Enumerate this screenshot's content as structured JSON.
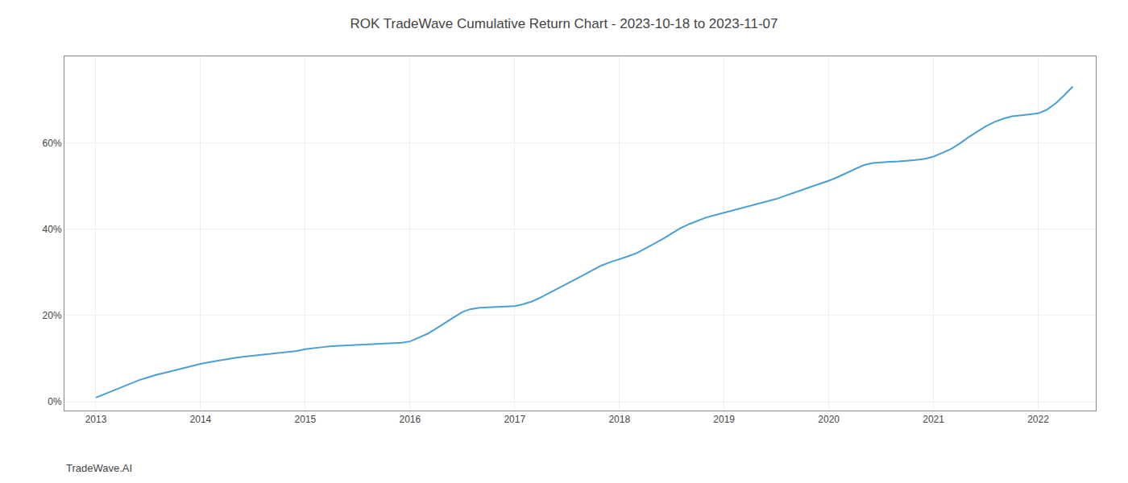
{
  "chart_data": {
    "type": "line",
    "title": "ROK TradeWave Cumulative Return Chart - 2023-10-18 to 2023-11-07",
    "annotations": [
      "TradeWave.AI"
    ],
    "color": "#4a9fd4",
    "grid": true,
    "xlim": [
      2012.7,
      2022.55
    ],
    "ylim": [
      -0.02,
      0.8
    ],
    "xticks": [
      2013,
      2014,
      2015,
      2016,
      2017,
      2018,
      2019,
      2020,
      2021,
      2022
    ],
    "yticks": [
      {
        "value": 0.0,
        "label": "0%"
      },
      {
        "value": 0.2,
        "label": "20%"
      },
      {
        "value": 0.4,
        "label": "40%"
      },
      {
        "value": 0.6,
        "label": "60%"
      }
    ],
    "x": [
      2013.0,
      2013.08,
      2013.17,
      2013.25,
      2013.33,
      2013.42,
      2013.5,
      2013.58,
      2013.67,
      2013.75,
      2013.83,
      2013.92,
      2014.0,
      2014.08,
      2014.17,
      2014.25,
      2014.33,
      2014.42,
      2014.5,
      2014.58,
      2014.67,
      2014.75,
      2014.83,
      2014.92,
      2015.0,
      2015.08,
      2015.17,
      2015.25,
      2015.33,
      2015.42,
      2015.5,
      2015.58,
      2015.67,
      2015.75,
      2015.83,
      2015.92,
      2016.0,
      2016.08,
      2016.17,
      2016.25,
      2016.33,
      2016.42,
      2016.5,
      2016.58,
      2016.67,
      2016.75,
      2016.83,
      2016.92,
      2017.0,
      2017.08,
      2017.17,
      2017.25,
      2017.33,
      2017.42,
      2017.5,
      2017.58,
      2017.67,
      2017.75,
      2017.83,
      2017.92,
      2018.0,
      2018.08,
      2018.17,
      2018.25,
      2018.33,
      2018.42,
      2018.5,
      2018.58,
      2018.67,
      2018.75,
      2018.83,
      2018.92,
      2019.0,
      2019.08,
      2019.17,
      2019.25,
      2019.33,
      2019.42,
      2019.5,
      2019.58,
      2019.67,
      2019.75,
      2019.83,
      2019.92,
      2020.0,
      2020.08,
      2020.17,
      2020.25,
      2020.33,
      2020.42,
      2020.5,
      2020.58,
      2020.67,
      2020.75,
      2020.83,
      2020.92,
      2021.0,
      2021.08,
      2021.17,
      2021.25,
      2021.33,
      2021.42,
      2021.5,
      2021.58,
      2021.67,
      2021.75,
      2021.83,
      2021.92,
      2022.0,
      2022.08,
      2022.17,
      2022.25,
      2022.33
    ],
    "values": [
      0.01,
      0.018,
      0.027,
      0.035,
      0.043,
      0.051,
      0.057,
      0.063,
      0.068,
      0.073,
      0.078,
      0.083,
      0.088,
      0.092,
      0.096,
      0.099,
      0.102,
      0.105,
      0.107,
      0.109,
      0.111,
      0.113,
      0.115,
      0.118,
      0.122,
      0.125,
      0.127,
      0.129,
      0.13,
      0.131,
      0.132,
      0.132,
      0.133,
      0.134,
      0.135,
      0.137,
      0.14,
      0.148,
      0.158,
      0.17,
      0.183,
      0.196,
      0.208,
      0.215,
      0.218,
      0.219,
      0.22,
      0.221,
      0.222,
      0.226,
      0.233,
      0.242,
      0.252,
      0.263,
      0.274,
      0.284,
      0.295,
      0.306,
      0.316,
      0.324,
      0.33,
      0.337,
      0.345,
      0.355,
      0.366,
      0.378,
      0.39,
      0.402,
      0.412,
      0.42,
      0.427,
      0.433,
      0.438,
      0.443,
      0.448,
      0.453,
      0.458,
      0.464,
      0.47,
      0.477,
      0.484,
      0.491,
      0.498,
      0.505,
      0.512,
      0.52,
      0.53,
      0.54,
      0.548,
      0.553,
      0.555,
      0.556,
      0.557,
      0.558,
      0.56,
      0.563,
      0.568,
      0.576,
      0.586,
      0.598,
      0.612,
      0.626,
      0.638,
      0.648,
      0.656,
      0.661,
      0.664,
      0.666,
      0.668,
      0.676,
      0.692,
      0.71,
      0.73
    ]
  }
}
